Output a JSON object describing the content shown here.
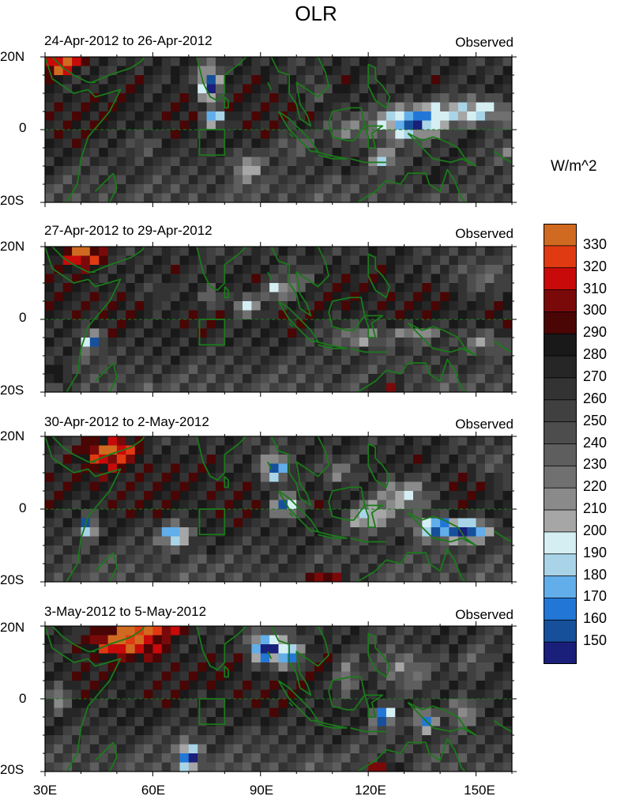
{
  "title": "OLR",
  "units": "W/m^2",
  "panels": [
    {
      "date_range": "24-Apr-2012 to 26-Apr-2012",
      "tag": "Observed"
    },
    {
      "date_range": "27-Apr-2012 to 29-Apr-2012",
      "tag": "Observed"
    },
    {
      "date_range": "30-Apr-2012 to 2-May-2012",
      "tag": "Observed"
    },
    {
      "date_range": "3-May-2012 to 5-May-2012",
      "tag": "Observed"
    }
  ],
  "y_axis": {
    "top": "20N",
    "mid": "0",
    "bottom": "20S"
  },
  "x_axis": [
    "30E",
    "60E",
    "90E",
    "120E",
    "150E"
  ],
  "colorbar": {
    "labels": [
      "330",
      "320",
      "310",
      "300",
      "290",
      "280",
      "270",
      "260",
      "250",
      "240",
      "230",
      "220",
      "210",
      "200",
      "190",
      "180",
      "170",
      "160",
      "150"
    ],
    "colors_top_to_bottom": [
      "#d06a20",
      "#e03a12",
      "#c80a0a",
      "#7a0a0a",
      "#4a0505",
      "#191919",
      "#262626",
      "#333333",
      "#404040",
      "#4d4d4d",
      "#5e5e5e",
      "#707070",
      "#8a8a8a",
      "#a6a6a6",
      "#d4eef2",
      "#a9d4e8",
      "#62aeea",
      "#2277d6",
      "#17509a",
      "#1a1f7a"
    ]
  },
  "map_extent": {
    "lon": [
      30,
      160
    ],
    "lat": [
      -20,
      20
    ]
  },
  "coastline_color": "#1a7a1a"
}
